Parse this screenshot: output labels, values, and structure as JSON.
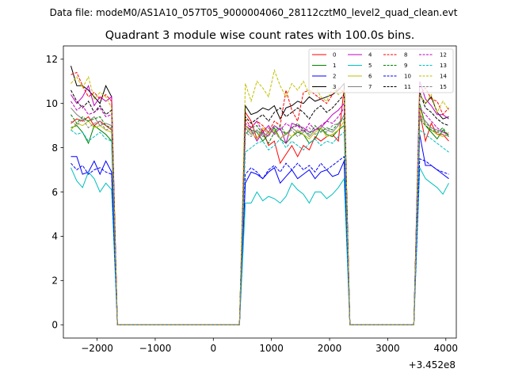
{
  "chart_data": {
    "type": "line",
    "suptitle": "Data file: modeM0/AS1A10_057T05_9000004060_28112cztM0_level2_quad_clean.evt",
    "title": "Quadrant 3 module wise count rates with 100.0s bins.",
    "xlabel": "",
    "ylabel": "",
    "x_offset_label": "+3.452e8",
    "xlim": [
      -2580,
      4180
    ],
    "ylim": [
      -0.6,
      12.6
    ],
    "x_ticks": [
      -2000,
      -1000,
      0,
      1000,
      2000,
      3000,
      4000
    ],
    "x_tick_labels": [
      "−2000",
      "−1000",
      "0",
      "1000",
      "2000",
      "3000",
      "4000"
    ],
    "y_ticks": [
      0,
      2,
      4,
      6,
      8,
      10,
      12
    ],
    "y_tick_labels": [
      "0",
      "2",
      "4",
      "6",
      "8",
      "10",
      "12"
    ],
    "x": [
      -2450,
      -2350,
      -2250,
      -2150,
      -2050,
      -1950,
      -1850,
      -1750,
      -1650,
      -1550,
      -1450,
      -1350,
      -1250,
      -1150,
      -1050,
      -950,
      -850,
      -750,
      -650,
      -550,
      -450,
      -350,
      -250,
      -150,
      -50,
      50,
      150,
      250,
      350,
      450,
      550,
      650,
      750,
      850,
      950,
      1050,
      1150,
      1250,
      1350,
      1450,
      1550,
      1650,
      1750,
      1850,
      1950,
      2050,
      2150,
      2250,
      2350,
      2450,
      2550,
      2650,
      2750,
      2850,
      2950,
      3050,
      3150,
      3250,
      3350,
      3450,
      3550,
      3650,
      3750,
      3850,
      3950,
      4050
    ],
    "series": [
      {
        "name": "0",
        "color": "#ff0000",
        "dash": "solid",
        "values": [
          9.1,
          9.3,
          9.2,
          9.4,
          9.0,
          9.2,
          9.0,
          8.8,
          0,
          0,
          0,
          0,
          0,
          0,
          0,
          0,
          0,
          0,
          0,
          0,
          0,
          0,
          0,
          0,
          0,
          0,
          0,
          0,
          0,
          0,
          9.6,
          9.2,
          8.4,
          8.8,
          8.1,
          8.3,
          7.3,
          7.7,
          8.1,
          7.6,
          8.1,
          7.9,
          8.5,
          8.3,
          8.5,
          8.6,
          8.3,
          10.7,
          0,
          0,
          0,
          0,
          0,
          0,
          0,
          0,
          0,
          0,
          0,
          0,
          9.6,
          8.3,
          9.1,
          8.6,
          8.6,
          8.3
        ]
      },
      {
        "name": "1",
        "color": "#008000",
        "dash": "solid",
        "values": [
          8.9,
          9.0,
          8.7,
          8.2,
          9.0,
          8.8,
          8.6,
          8.3,
          0,
          0,
          0,
          0,
          0,
          0,
          0,
          0,
          0,
          0,
          0,
          0,
          0,
          0,
          0,
          0,
          0,
          0,
          0,
          0,
          0,
          0,
          9.0,
          8.8,
          8.7,
          8.3,
          8.6,
          8.9,
          8.4,
          8.2,
          8.5,
          8.7,
          8.6,
          8.2,
          8.4,
          8.9,
          8.6,
          8.5,
          8.8,
          9.0,
          0,
          0,
          0,
          0,
          0,
          0,
          0,
          0,
          0,
          0,
          0,
          0,
          10.0,
          9.0,
          8.7,
          8.4,
          8.8,
          8.5
        ]
      },
      {
        "name": "2",
        "color": "#0000ff",
        "dash": "solid",
        "values": [
          7.6,
          7.6,
          6.8,
          6.9,
          7.4,
          6.8,
          7.4,
          6.9,
          0,
          0,
          0,
          0,
          0,
          0,
          0,
          0,
          0,
          0,
          0,
          0,
          0,
          0,
          0,
          0,
          0,
          0,
          0,
          0,
          0,
          0,
          6.4,
          6.9,
          6.8,
          6.6,
          6.9,
          7.1,
          6.4,
          6.7,
          7.0,
          6.6,
          6.8,
          7.0,
          6.6,
          6.9,
          7.0,
          6.7,
          6.8,
          7.4,
          0,
          0,
          0,
          0,
          0,
          0,
          0,
          0,
          0,
          0,
          0,
          0,
          8.6,
          7.2,
          7.2,
          7.0,
          6.8,
          6.6
        ]
      },
      {
        "name": "3",
        "color": "#000000",
        "dash": "solid",
        "values": [
          11.7,
          10.8,
          10.8,
          10.6,
          10.3,
          10.0,
          10.8,
          10.3,
          0,
          0,
          0,
          0,
          0,
          0,
          0,
          0,
          0,
          0,
          0,
          0,
          0,
          0,
          0,
          0,
          0,
          0,
          0,
          0,
          0,
          0,
          9.9,
          9.5,
          9.6,
          9.8,
          9.7,
          9.9,
          9.3,
          9.8,
          9.9,
          10.1,
          10.0,
          10.3,
          10.1,
          10.2,
          10.3,
          10.4,
          10.6,
          10.9,
          0,
          0,
          0,
          0,
          0,
          0,
          0,
          0,
          0,
          0,
          0,
          0,
          10.4,
          10.0,
          10.3,
          9.6,
          9.3,
          9.4
        ]
      },
      {
        "name": "4",
        "color": "#bf00bf",
        "dash": "solid",
        "values": [
          10.4,
          10.0,
          10.3,
          10.8,
          9.9,
          10.3,
          10.1,
          10.3,
          0,
          0,
          0,
          0,
          0,
          0,
          0,
          0,
          0,
          0,
          0,
          0,
          0,
          0,
          0,
          0,
          0,
          0,
          0,
          0,
          0,
          0,
          9.0,
          8.8,
          8.3,
          8.7,
          9.0,
          8.6,
          8.9,
          8.2,
          9.1,
          9.0,
          8.9,
          8.7,
          8.8,
          8.9,
          9.2,
          9.5,
          9.7,
          10.0,
          0,
          0,
          0,
          0,
          0,
          0,
          0,
          0,
          0,
          0,
          0,
          0,
          11.0,
          10.2,
          9.9,
          9.5,
          9.5,
          9.3
        ]
      },
      {
        "name": "5",
        "color": "#00bfbf",
        "dash": "solid",
        "values": [
          7.1,
          6.5,
          6.2,
          6.9,
          6.6,
          6.0,
          6.4,
          6.1,
          0,
          0,
          0,
          0,
          0,
          0,
          0,
          0,
          0,
          0,
          0,
          0,
          0,
          0,
          0,
          0,
          0,
          0,
          0,
          0,
          0,
          0,
          5.5,
          5.5,
          6.0,
          5.6,
          5.8,
          5.7,
          5.5,
          5.8,
          6.4,
          6.1,
          5.9,
          5.5,
          6.0,
          6.0,
          5.7,
          5.9,
          6.2,
          6.6,
          0,
          0,
          0,
          0,
          0,
          0,
          0,
          0,
          0,
          0,
          0,
          0,
          7.1,
          6.6,
          6.4,
          6.2,
          5.9,
          6.4
        ]
      },
      {
        "name": "6",
        "color": "#bfbf00",
        "dash": "solid",
        "values": [
          8.8,
          9.1,
          9.0,
          9.2,
          8.9,
          9.0,
          8.8,
          8.7,
          0,
          0,
          0,
          0,
          0,
          0,
          0,
          0,
          0,
          0,
          0,
          0,
          0,
          0,
          0,
          0,
          0,
          0,
          0,
          0,
          0,
          0,
          9.0,
          8.7,
          8.4,
          8.9,
          8.6,
          8.8,
          8.4,
          8.7,
          8.5,
          8.8,
          8.6,
          8.4,
          8.7,
          8.9,
          8.5,
          8.6,
          8.8,
          9.2,
          0,
          0,
          0,
          0,
          0,
          0,
          0,
          0,
          0,
          0,
          0,
          0,
          9.8,
          9.0,
          8.8,
          8.6,
          8.5,
          8.7
        ]
      },
      {
        "name": "7",
        "color": "#808080",
        "dash": "solid",
        "values": [
          9.8,
          9.5,
          9.3,
          9.2,
          9.4,
          9.0,
          9.1,
          9.0,
          0,
          0,
          0,
          0,
          0,
          0,
          0,
          0,
          0,
          0,
          0,
          0,
          0,
          0,
          0,
          0,
          0,
          0,
          0,
          0,
          0,
          0,
          8.9,
          8.6,
          8.8,
          8.5,
          8.7,
          9.0,
          8.8,
          8.6,
          8.9,
          8.7,
          8.8,
          8.5,
          8.8,
          9.0,
          8.8,
          8.7,
          9.0,
          9.5,
          0,
          0,
          0,
          0,
          0,
          0,
          0,
          0,
          0,
          0,
          0,
          0,
          9.5,
          9.2,
          8.9,
          8.8,
          8.7,
          8.6
        ]
      },
      {
        "name": "8",
        "color": "#ff0000",
        "dash": "dashed",
        "values": [
          11.3,
          11.4,
          10.8,
          10.3,
          10.5,
          10.2,
          10.4,
          10.1,
          0,
          0,
          0,
          0,
          0,
          0,
          0,
          0,
          0,
          0,
          0,
          0,
          0,
          0,
          0,
          0,
          0,
          0,
          0,
          0,
          0,
          0,
          9.3,
          8.9,
          9.2,
          9.0,
          8.7,
          9.2,
          9.0,
          10.6,
          9.7,
          9.2,
          10.5,
          10.6,
          10.4,
          10.2,
          10.0,
          10.4,
          10.7,
          10.5,
          0,
          0,
          0,
          0,
          0,
          0,
          0,
          0,
          0,
          0,
          0,
          0,
          10.4,
          10.7,
          10.2,
          10.1,
          9.5,
          9.8
        ]
      },
      {
        "name": "9",
        "color": "#008000",
        "dash": "dashed",
        "values": [
          9.5,
          9.1,
          9.4,
          9.2,
          9.3,
          9.4,
          9.0,
          8.9,
          0,
          0,
          0,
          0,
          0,
          0,
          0,
          0,
          0,
          0,
          0,
          0,
          0,
          0,
          0,
          0,
          0,
          0,
          0,
          0,
          0,
          0,
          8.6,
          8.9,
          9.0,
          8.6,
          8.2,
          8.7,
          9.0,
          8.6,
          8.9,
          9.1,
          8.8,
          8.6,
          9.0,
          8.7,
          8.9,
          8.8,
          9.1,
          9.3,
          0,
          0,
          0,
          0,
          0,
          0,
          0,
          0,
          0,
          0,
          0,
          0,
          9.3,
          9.0,
          8.8,
          8.7,
          8.9,
          8.5
        ]
      },
      {
        "name": "10",
        "color": "#0000ff",
        "dash": "dashed",
        "values": [
          7.3,
          7.0,
          7.2,
          6.8,
          7.0,
          7.1,
          6.9,
          6.8,
          0,
          0,
          0,
          0,
          0,
          0,
          0,
          0,
          0,
          0,
          0,
          0,
          0,
          0,
          0,
          0,
          0,
          0,
          0,
          0,
          0,
          0,
          6.8,
          7.1,
          6.9,
          6.6,
          7.0,
          7.2,
          6.9,
          7.3,
          7.0,
          7.3,
          7.0,
          7.2,
          6.9,
          7.3,
          7.0,
          7.2,
          7.4,
          7.6,
          0,
          0,
          0,
          0,
          0,
          0,
          0,
          0,
          0,
          0,
          0,
          0,
          7.5,
          7.4,
          7.2,
          7.0,
          6.9,
          6.8
        ]
      },
      {
        "name": "11",
        "color": "#000000",
        "dash": "dashed",
        "values": [
          10.6,
          10.1,
          9.8,
          10.1,
          9.6,
          9.9,
          9.5,
          9.7,
          0,
          0,
          0,
          0,
          0,
          0,
          0,
          0,
          0,
          0,
          0,
          0,
          0,
          0,
          0,
          0,
          0,
          0,
          0,
          0,
          0,
          0,
          9.4,
          9.1,
          9.3,
          9.5,
          9.2,
          9.6,
          9.8,
          9.4,
          9.6,
          9.8,
          9.6,
          9.3,
          9.7,
          9.9,
          9.6,
          9.8,
          10.1,
          10.4,
          0,
          0,
          0,
          0,
          0,
          0,
          0,
          0,
          0,
          0,
          0,
          0,
          10.5,
          9.8,
          9.6,
          9.3,
          9.1,
          9.0
        ]
      },
      {
        "name": "12",
        "color": "#bf00bf",
        "dash": "dashed",
        "values": [
          10.1,
          9.7,
          9.9,
          9.5,
          9.6,
          9.8,
          9.4,
          9.5,
          0,
          0,
          0,
          0,
          0,
          0,
          0,
          0,
          0,
          0,
          0,
          0,
          0,
          0,
          0,
          0,
          0,
          0,
          0,
          0,
          0,
          0,
          9.1,
          8.9,
          9.2,
          8.7,
          8.5,
          9.0,
          8.8,
          9.1,
          8.9,
          9.0,
          8.7,
          9.1,
          8.8,
          9.0,
          9.2,
          9.1,
          9.4,
          9.8,
          0,
          0,
          0,
          0,
          0,
          0,
          0,
          0,
          0,
          0,
          0,
          0,
          9.8,
          9.5,
          9.2,
          8.9,
          8.7,
          8.6
        ]
      },
      {
        "name": "13",
        "color": "#00bfbf",
        "dash": "dashed",
        "values": [
          8.8,
          8.6,
          8.7,
          8.3,
          8.5,
          8.7,
          8.4,
          8.3,
          0,
          0,
          0,
          0,
          0,
          0,
          0,
          0,
          0,
          0,
          0,
          0,
          0,
          0,
          0,
          0,
          0,
          0,
          0,
          0,
          0,
          0,
          7.8,
          8.0,
          8.2,
          8.3,
          7.9,
          8.1,
          8.4,
          8.0,
          8.3,
          8.1,
          7.9,
          8.2,
          8.4,
          8.1,
          8.3,
          8.2,
          8.5,
          8.7,
          0,
          0,
          0,
          0,
          0,
          0,
          0,
          0,
          0,
          0,
          0,
          0,
          8.8,
          8.6,
          8.4,
          8.2,
          8.0,
          7.8
        ]
      },
      {
        "name": "14",
        "color": "#bfbf00",
        "dash": "dashed",
        "values": [
          10.9,
          11.2,
          10.7,
          11.2,
          10.2,
          10.5,
          10.3,
          9.8,
          0,
          0,
          0,
          0,
          0,
          0,
          0,
          0,
          0,
          0,
          0,
          0,
          0,
          0,
          0,
          0,
          0,
          0,
          0,
          0,
          0,
          0,
          10.9,
          10.1,
          11.0,
          10.7,
          10.3,
          11.5,
          10.8,
          10.3,
          10.9,
          10.6,
          11.0,
          10.4,
          10.8,
          10.3,
          10.1,
          10.7,
          10.4,
          10.6,
          0,
          0,
          0,
          0,
          0,
          0,
          0,
          0,
          0,
          0,
          0,
          0,
          10.4,
          10.0,
          10.4,
          9.6,
          10.1,
          9.7
        ]
      },
      {
        "name": "15",
        "color": "#808080",
        "dash": "dashed",
        "values": [
          9.2,
          9.0,
          9.3,
          8.9,
          9.1,
          9.2,
          8.8,
          8.9,
          0,
          0,
          0,
          0,
          0,
          0,
          0,
          0,
          0,
          0,
          0,
          0,
          0,
          0,
          0,
          0,
          0,
          0,
          0,
          0,
          0,
          0,
          8.7,
          8.5,
          8.8,
          8.6,
          8.9,
          8.7,
          8.4,
          8.6,
          8.8,
          8.5,
          8.7,
          8.9,
          8.6,
          8.8,
          8.7,
          9.0,
          9.1,
          9.4,
          0,
          0,
          0,
          0,
          0,
          0,
          0,
          0,
          0,
          0,
          0,
          0,
          9.4,
          9.1,
          8.9,
          8.7,
          8.6,
          8.5
        ]
      }
    ]
  }
}
